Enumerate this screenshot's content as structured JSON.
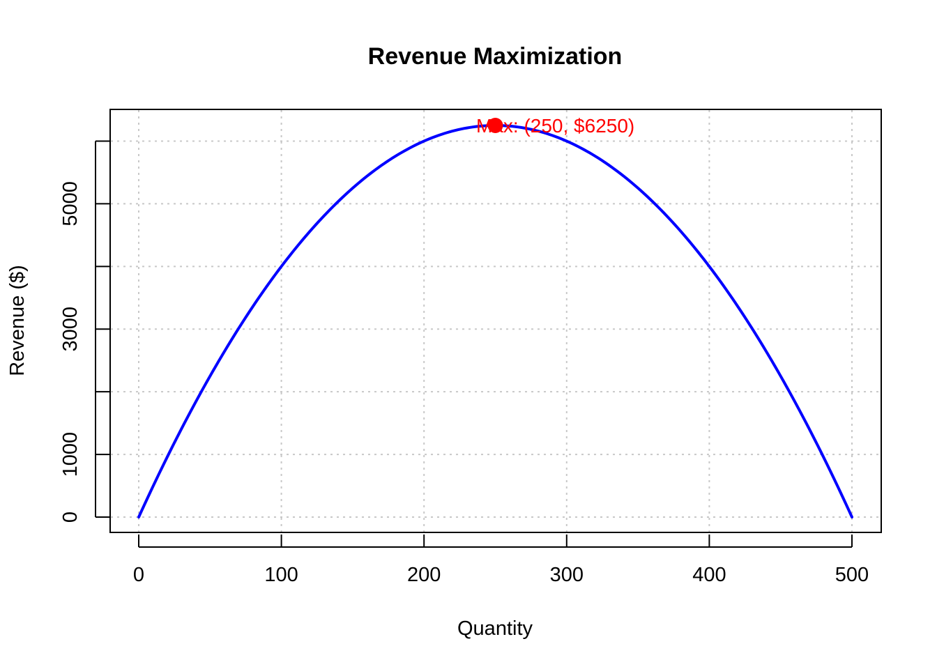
{
  "colors": {
    "curve": "#0000ff",
    "max_point": "#ff0000",
    "grid": "#c8c8c8",
    "axis": "#000000",
    "background": "#ffffff"
  },
  "chart_data": {
    "type": "line",
    "title": "Revenue Maximization",
    "xlabel": "Quantity",
    "ylabel": "Revenue ($)",
    "xlim": [
      0,
      500
    ],
    "ylim": [
      0,
      6250
    ],
    "x_ticks": [
      0,
      100,
      200,
      300,
      400,
      500
    ],
    "x_tick_labels": [
      "0",
      "100",
      "200",
      "300",
      "400",
      "500"
    ],
    "y_ticks": [
      0,
      1000,
      2000,
      3000,
      4000,
      5000,
      6000
    ],
    "y_tick_labels": [
      "0",
      "1000",
      "",
      "3000",
      "",
      "5000",
      ""
    ],
    "grid": true,
    "grid_style": "dotted",
    "series": [
      {
        "x": [
          0,
          20,
          40,
          60,
          80,
          100,
          120,
          140,
          160,
          180,
          200,
          220,
          240,
          250,
          260,
          280,
          300,
          320,
          340,
          360,
          380,
          400,
          420,
          440,
          460,
          480,
          500
        ],
        "values": [
          0,
          960,
          1840,
          2640,
          3360,
          4000,
          4560,
          5040,
          5440,
          5760,
          6000,
          6160,
          6240,
          6250,
          6240,
          6160,
          6000,
          5760,
          5440,
          5040,
          4560,
          4000,
          3360,
          2640,
          1840,
          960,
          0
        ]
      }
    ],
    "annotation": {
      "text": "Max: (250, $6250)",
      "x": 250,
      "y": 6250
    }
  }
}
